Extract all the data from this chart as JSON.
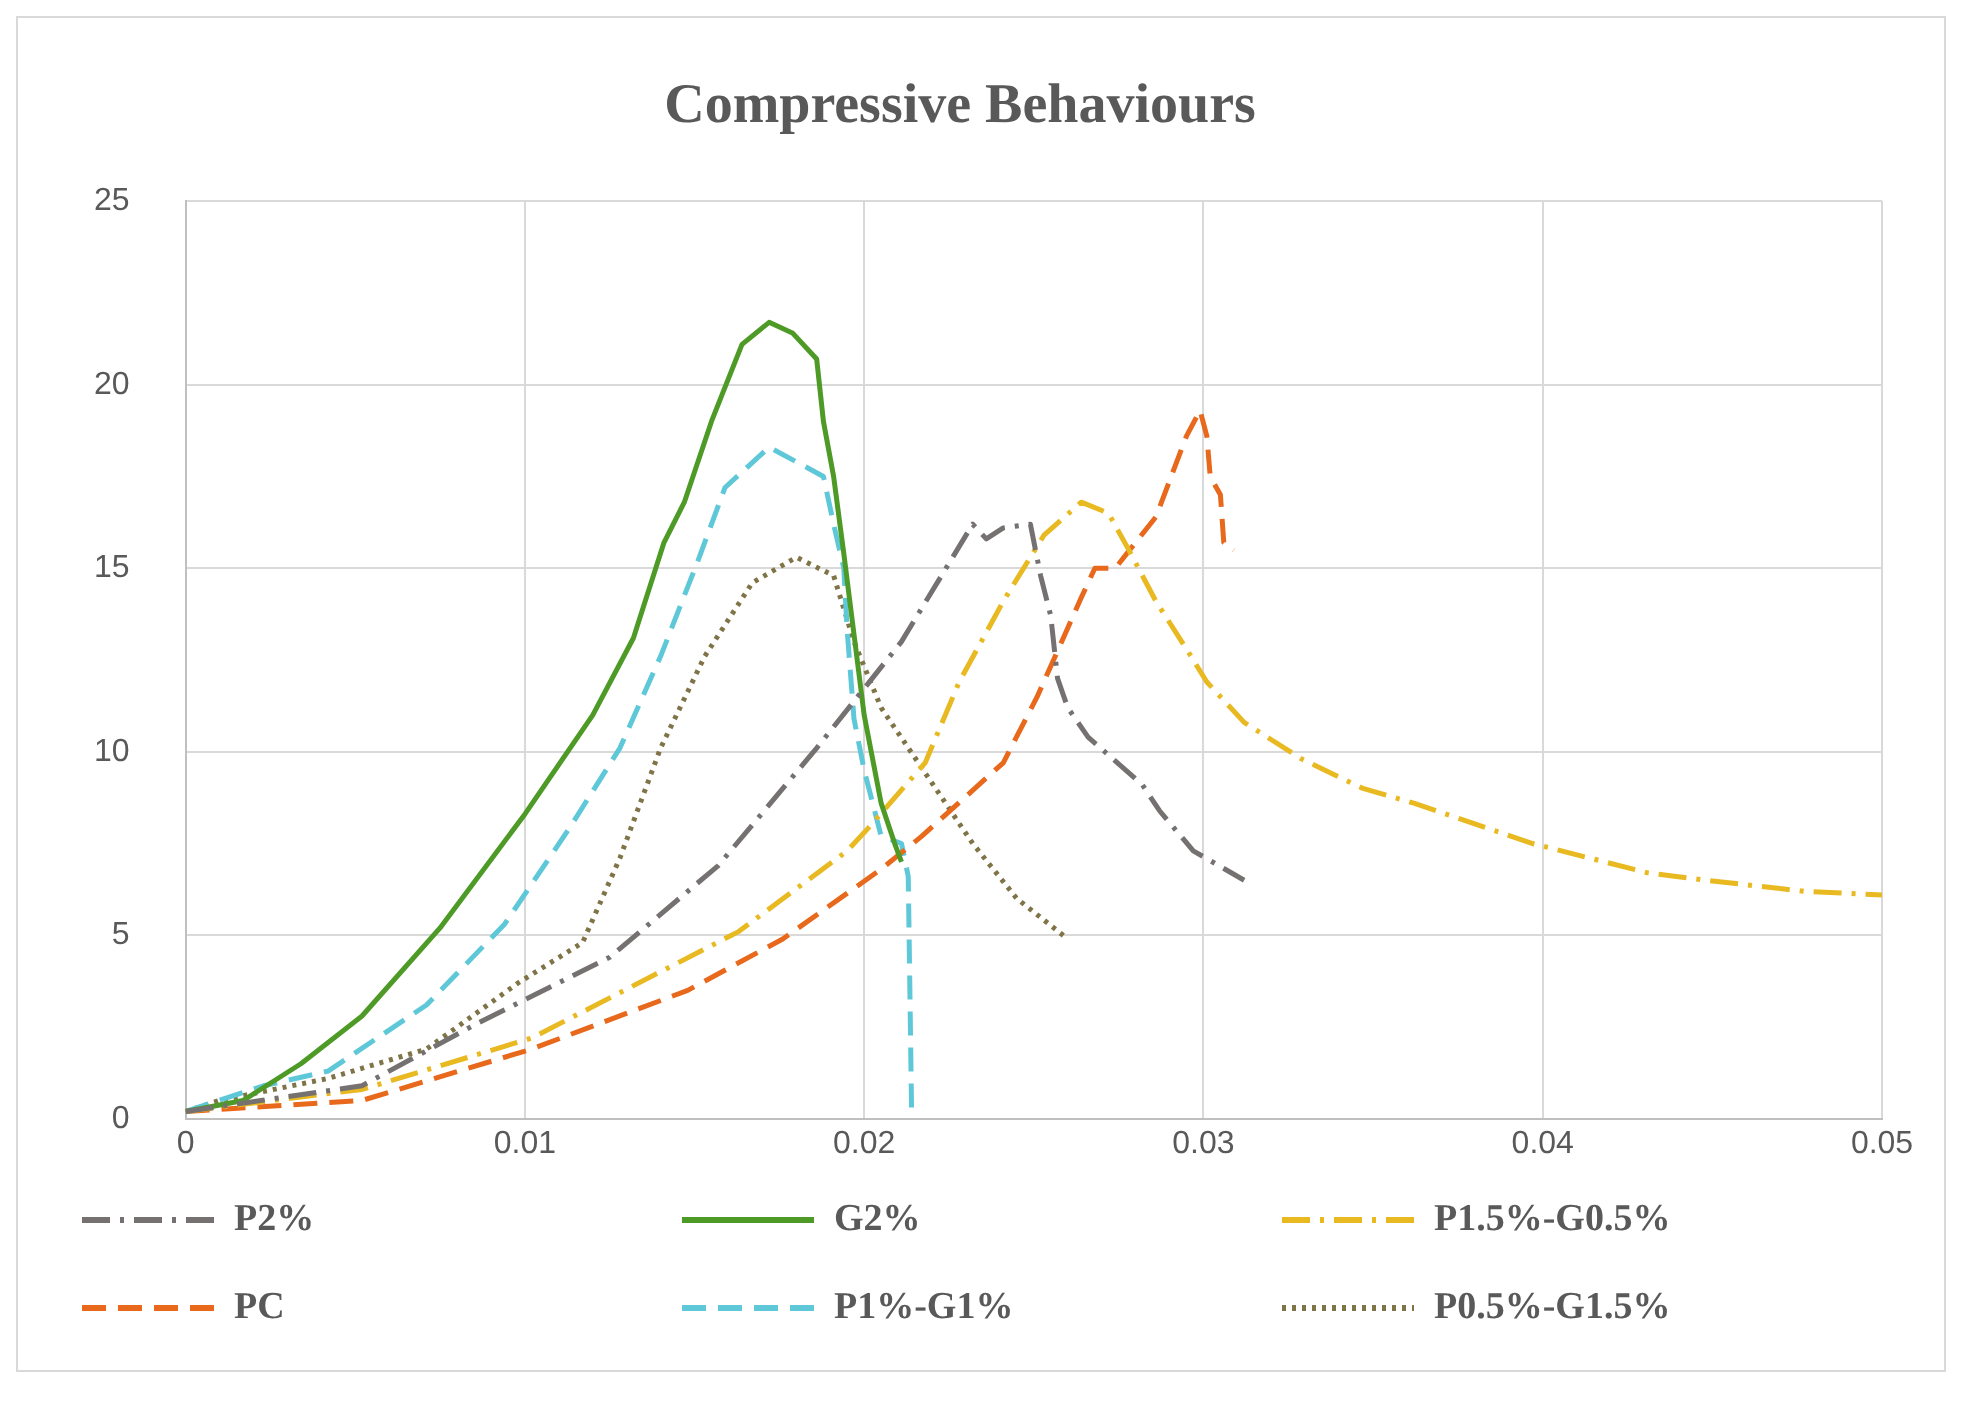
{
  "chart_data": {
    "type": "line",
    "title": "Compressive Behaviours",
    "xlim": [
      0,
      0.05
    ],
    "xticks": [
      0,
      0.01,
      0.02,
      0.03,
      0.04,
      0.05
    ],
    "ylim": [
      0,
      25
    ],
    "yticks": [
      0,
      5,
      10,
      15,
      20,
      25
    ],
    "grid": true,
    "legend": "bottom",
    "marker": "none",
    "series": [
      {
        "name": "P2%",
        "color": "#767171",
        "line_style": "dashdot",
        "x": [
          0,
          0.0052,
          0.0086,
          0.0125,
          0.0157,
          0.0186,
          0.0211,
          0.0232,
          0.0236,
          0.0241,
          0.0249,
          0.0252,
          0.0255,
          0.0257,
          0.026,
          0.0266,
          0.0282,
          0.0287,
          0.0297,
          0.0312
        ],
        "values": [
          0.2,
          0.9,
          2.6,
          4.4,
          6.9,
          10.1,
          13,
          16.2,
          15.8,
          16.1,
          16.2,
          14.8,
          13.7,
          12,
          11.2,
          10.4,
          9.1,
          8.4,
          7.3,
          6.5
        ]
      },
      {
        "name": "G2%",
        "color": "#4e9a27",
        "line_style": "solid",
        "x": [
          0,
          0.0017,
          0.0034,
          0.0052,
          0.0075,
          0.01,
          0.012,
          0.0132,
          0.0141,
          0.0147,
          0.0155,
          0.0164,
          0.0172,
          0.0179,
          0.0186,
          0.0188,
          0.0191,
          0.0194,
          0.0197,
          0.02,
          0.0205,
          0.0209,
          0.0211
        ],
        "values": [
          0.2,
          0.5,
          1.5,
          2.8,
          5.2,
          8.3,
          11,
          13.1,
          15.7,
          16.8,
          19,
          21.1,
          21.7,
          21.4,
          20.7,
          19,
          17.5,
          15.4,
          13.2,
          11,
          8.6,
          7.5,
          7
        ]
      },
      {
        "name": "P1.5%-G0.5%",
        "color": "#e8b920",
        "line_style": "dashdot",
        "x": [
          0,
          0.0052,
          0.0102,
          0.0163,
          0.0195,
          0.0201,
          0.0218,
          0.0228,
          0.0241,
          0.0253,
          0.0264,
          0.0272,
          0.0278,
          0.0286,
          0.0295,
          0.0301,
          0.0312,
          0.0329,
          0.0347,
          0.0362,
          0.0397,
          0.0431,
          0.0448,
          0.0477,
          0.05
        ],
        "values": [
          0.2,
          0.8,
          2.2,
          5.1,
          7.3,
          7.9,
          9.7,
          11.9,
          14.1,
          15.9,
          16.8,
          16.5,
          15.5,
          14.1,
          12.8,
          11.9,
          10.8,
          9.8,
          9,
          8.6,
          7.5,
          6.7,
          6.5,
          6.2,
          6.1
        ]
      },
      {
        "name": "PC",
        "color": "#e8681c",
        "line_style": "dashed",
        "x": [
          0,
          0.0052,
          0.0102,
          0.0148,
          0.0176,
          0.0205,
          0.0217,
          0.0241,
          0.0251,
          0.0264,
          0.0268,
          0.0274,
          0.0286,
          0.0295,
          0.0299,
          0.0301,
          0.0302,
          0.0305,
          0.0306,
          0.0309
        ],
        "values": [
          0.2,
          0.5,
          1.9,
          3.5,
          4.9,
          6.8,
          7.7,
          9.7,
          11.5,
          14.2,
          15,
          15,
          16.4,
          18.6,
          19.3,
          18.6,
          17.5,
          17,
          15.7,
          15.5
        ]
      },
      {
        "name": "P1%-G1%",
        "color": "#5ec8d8",
        "line_style": "dashed",
        "x": [
          0,
          0.0023,
          0.0042,
          0.0071,
          0.0094,
          0.0113,
          0.0128,
          0.014,
          0.0151,
          0.0159,
          0.0172,
          0.0188,
          0.0191,
          0.0194,
          0.0195,
          0.0197,
          0.02,
          0.0205,
          0.0211,
          0.0213,
          0.0214
        ],
        "values": [
          0.2,
          0.9,
          1.3,
          3.1,
          5.3,
          7.9,
          10.1,
          12.6,
          15.2,
          17.2,
          18.3,
          17.5,
          16.2,
          15,
          13.3,
          10.9,
          9.5,
          7.7,
          7.5,
          6.6,
          0.1
        ]
      },
      {
        "name": "P0.5%-G1.5%",
        "color": "#7f7447",
        "line_style": "dotted",
        "x": [
          0,
          0.001,
          0.0042,
          0.0071,
          0.0098,
          0.0117,
          0.0128,
          0.014,
          0.0153,
          0.0167,
          0.018,
          0.0191,
          0.0197,
          0.0205,
          0.0224,
          0.0232,
          0.0245,
          0.026
        ],
        "values": [
          0.2,
          0.5,
          1.1,
          1.9,
          3.7,
          4.8,
          7.1,
          10.1,
          12.6,
          14.6,
          15.3,
          14.8,
          13,
          11.2,
          8.6,
          7.5,
          6,
          4.9
        ]
      }
    ]
  }
}
